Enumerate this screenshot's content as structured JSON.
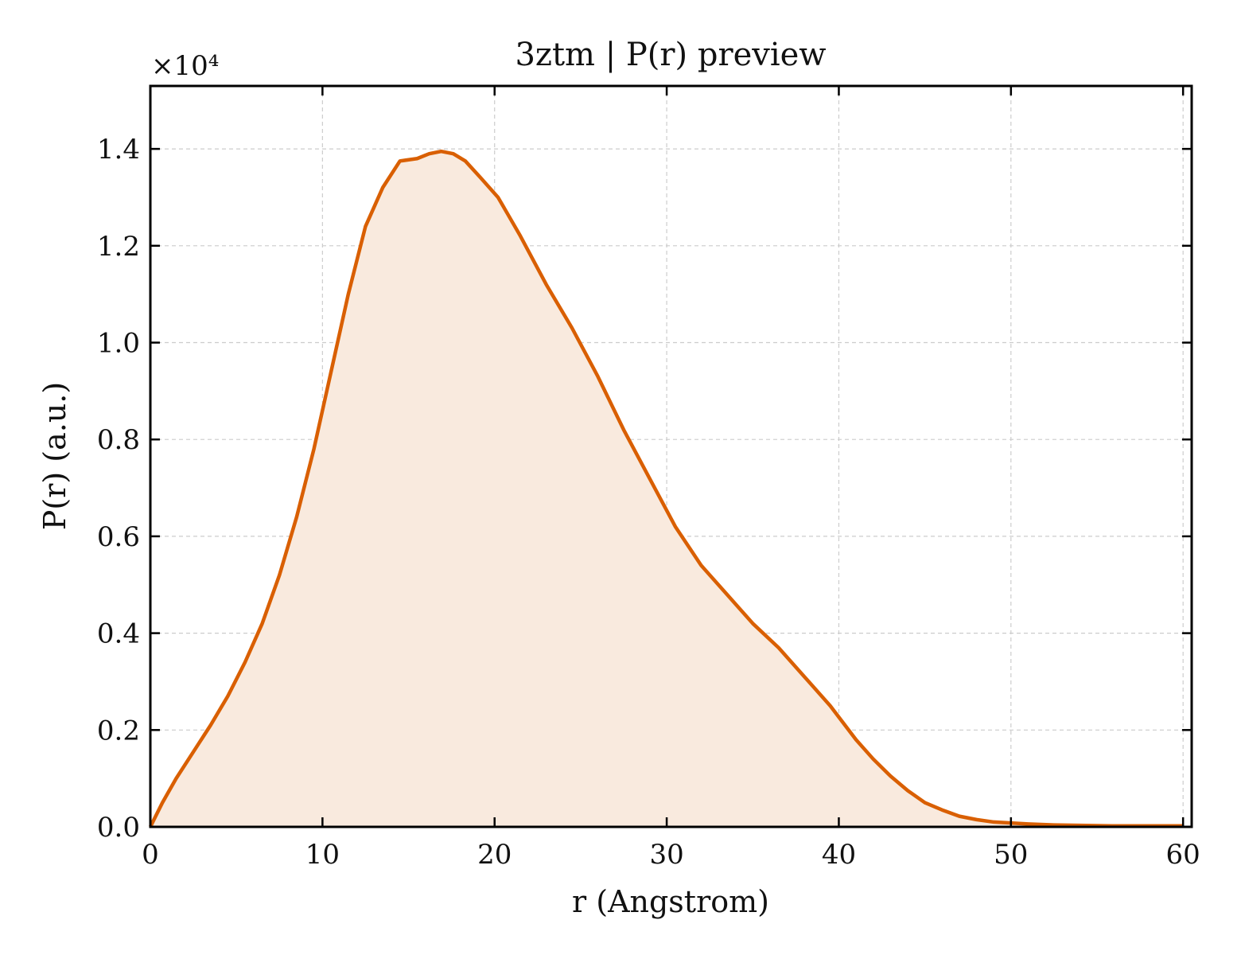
{
  "chart_data": {
    "type": "area",
    "title": "3ztm | P(r) preview",
    "xlabel": "r (Angstrom)",
    "ylabel": "P(r) (a.u.)",
    "y_multiplier_label": "×10⁴",
    "xlim": [
      0,
      60.5
    ],
    "ylim": [
      0,
      1.53
    ],
    "x_ticks": [
      0,
      10,
      20,
      30,
      40,
      50,
      60
    ],
    "x_tick_labels": [
      "0",
      "10",
      "20",
      "30",
      "40",
      "50",
      "60"
    ],
    "y_ticks": [
      0,
      0.2,
      0.4,
      0.6,
      0.8,
      1.0,
      1.2,
      1.4
    ],
    "y_tick_labels": [
      "0.0",
      "0.2",
      "0.4",
      "0.6",
      "0.8",
      "1.0",
      "1.2",
      "1.4"
    ],
    "grid": true,
    "line_color": "#d95f02",
    "fill_color": "#f9eade",
    "series": [
      {
        "x": [
          0,
          0.7,
          1.5,
          2.5,
          3.5,
          4.5,
          5.5,
          6.5,
          7.5,
          8.5,
          9.5,
          10.5,
          11.5,
          12.5,
          13.5,
          14.5,
          15.5,
          16.2,
          16.9,
          17.6,
          18.3,
          19.2,
          20.2,
          21.5,
          23.0,
          24.5,
          26.0,
          27.5,
          29.0,
          30.5,
          32.0,
          33.5,
          35.0,
          36.5,
          38.0,
          39.5,
          41.0,
          42.0,
          43.0,
          44.0,
          45.0,
          46.0,
          47.0,
          48.0,
          49.0,
          50.0,
          51.0,
          52.5,
          54.0,
          56.0,
          58.0,
          60.0
        ],
        "y": [
          0.0,
          0.05,
          0.1,
          0.155,
          0.21,
          0.27,
          0.34,
          0.42,
          0.52,
          0.64,
          0.78,
          0.94,
          1.1,
          1.24,
          1.32,
          1.375,
          1.38,
          1.39,
          1.395,
          1.39,
          1.375,
          1.34,
          1.3,
          1.22,
          1.12,
          1.03,
          0.93,
          0.82,
          0.72,
          0.62,
          0.54,
          0.48,
          0.42,
          0.37,
          0.31,
          0.25,
          0.18,
          0.14,
          0.105,
          0.075,
          0.05,
          0.035,
          0.022,
          0.015,
          0.01,
          0.008,
          0.006,
          0.004,
          0.003,
          0.002,
          0.002,
          0.002
        ]
      }
    ]
  }
}
